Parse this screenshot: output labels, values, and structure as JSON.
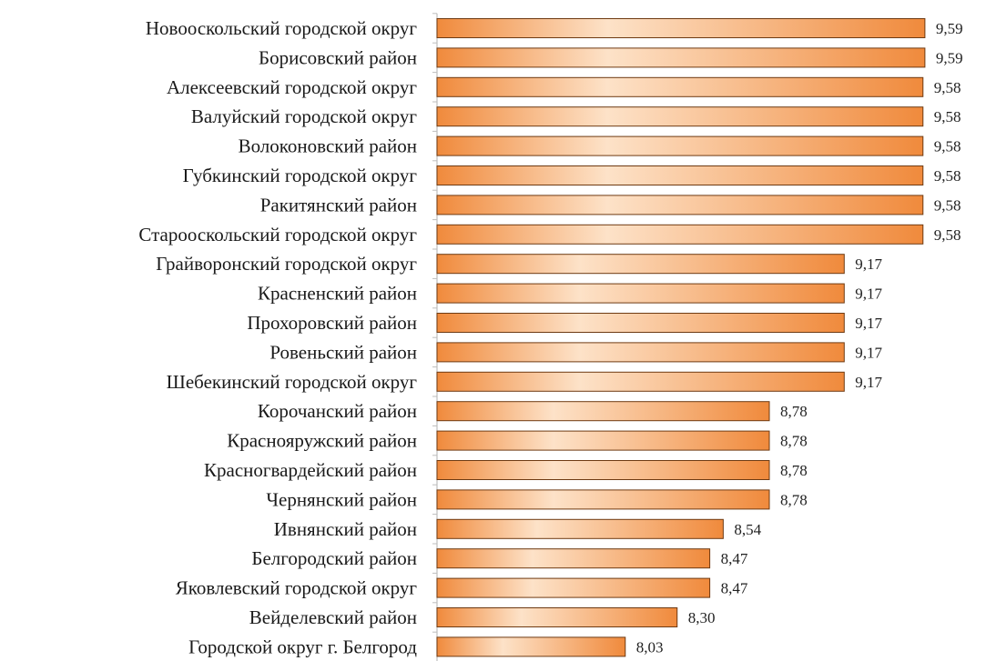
{
  "chart_data": {
    "type": "bar",
    "orientation": "horizontal",
    "title": "",
    "xlabel": "",
    "ylabel": "",
    "xlim": [
      7.05,
      9.6
    ],
    "grid": false,
    "bar_color": "#f08a3c",
    "bar_highlight_color": "#fde2c8",
    "bar_border_color": "#6e3a12",
    "categories": [
      "Новооскольский городской округ",
      "Борисовский район",
      "Алексеевский городской округ",
      "Валуйский городской округ",
      "Волоконовский район",
      "Губкинский городской округ",
      "Ракитянский район",
      "Старооскольский городской округ",
      "Грайворонский городской округ",
      "Красненский район",
      "Прохоровский район",
      "Ровеньский район",
      "Шебекинский городской округ",
      "Корочанский район",
      "Краснояружский район",
      "Красногвардейский район",
      "Чернянский район",
      "Ивнянский район",
      "Белгородский район",
      "Яковлевский городской округ",
      "Вейделевский район",
      "Городской округ г. Белгород"
    ],
    "values": [
      9.59,
      9.59,
      9.58,
      9.58,
      9.58,
      9.58,
      9.58,
      9.58,
      9.17,
      9.17,
      9.17,
      9.17,
      9.17,
      8.78,
      8.78,
      8.78,
      8.78,
      8.54,
      8.47,
      8.47,
      8.3,
      8.03
    ],
    "value_labels": [
      "9,59",
      "9,59",
      "9,58",
      "9,58",
      "9,58",
      "9,58",
      "9,58",
      "9,58",
      "9,17",
      "9,17",
      "9,17",
      "9,17",
      "9,17",
      "8,78",
      "8,78",
      "8,78",
      "8,78",
      "8,54",
      "8,47",
      "8,47",
      "8,30",
      "8,03"
    ]
  }
}
